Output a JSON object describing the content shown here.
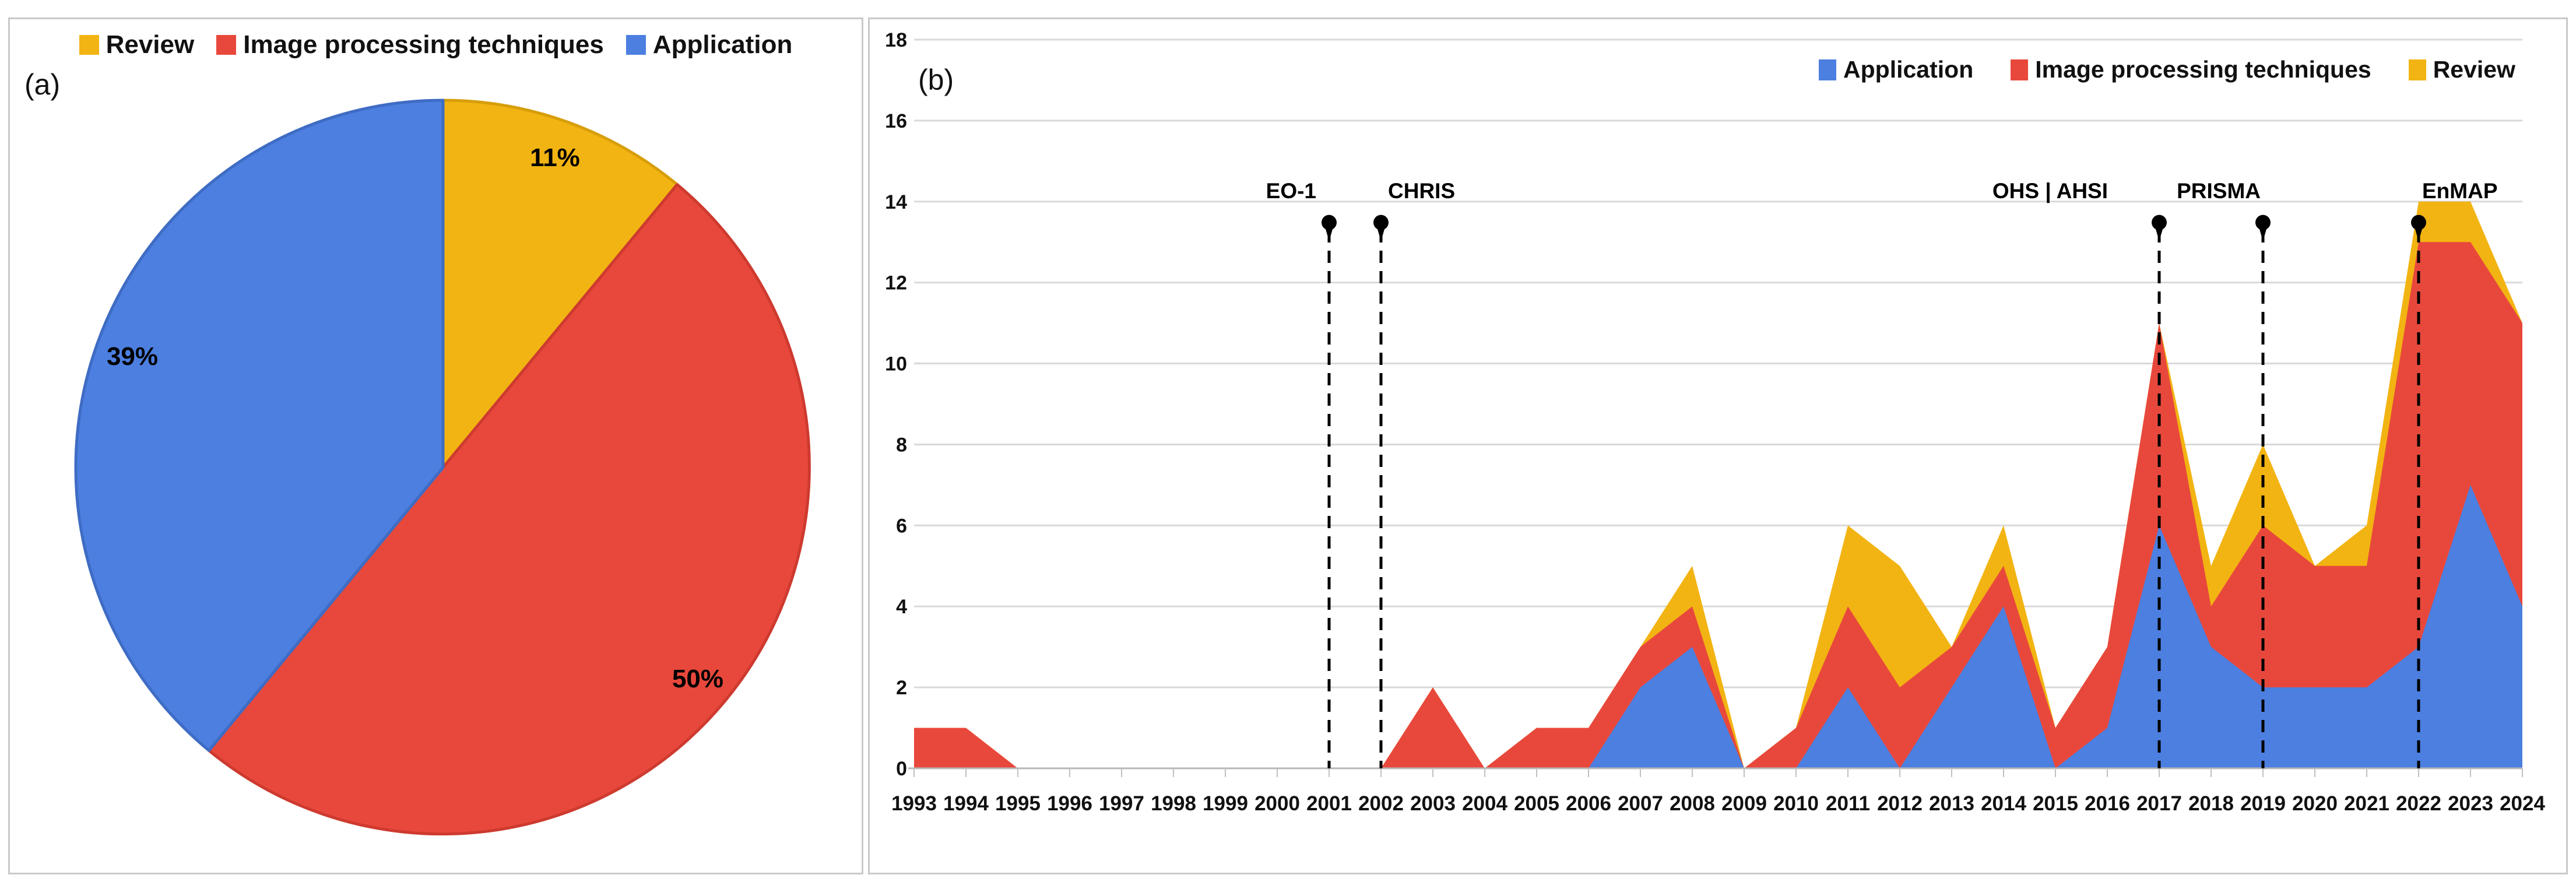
{
  "figure": {
    "panel_a": {
      "tag": "(a)",
      "legend": [
        {
          "label": "Review",
          "color": "#F2B412",
          "icon": "legend-swatch-review"
        },
        {
          "label": "Image processing techniques",
          "color": "#E8483C",
          "icon": "legend-swatch-image-processing"
        },
        {
          "label": "Application",
          "color": "#4C7FE0",
          "icon": "legend-swatch-application"
        }
      ],
      "chart_data": {
        "type": "pie",
        "title": "",
        "start_at": "12-o-clock",
        "direction": "clockwise",
        "slices": [
          {
            "label": "Review",
            "value": 11,
            "display": "11%",
            "color": "#F2B412",
            "edge_color": "#D79E0B"
          },
          {
            "label": "Image processing techniques",
            "value": 50,
            "display": "50%",
            "color": "#E8483C",
            "edge_color": "#CE3A2F"
          },
          {
            "label": "Application",
            "value": 39,
            "display": "39%",
            "color": "#4C7FE0",
            "edge_color": "#3F6CC4"
          }
        ]
      }
    },
    "panel_b": {
      "tag": "(b)",
      "legend": [
        {
          "label": "Application",
          "color": "#4C7FE0",
          "icon": "legend-swatch-application"
        },
        {
          "label": "Image processing techniques",
          "color": "#E8483C",
          "icon": "legend-swatch-image-processing"
        },
        {
          "label": "Review",
          "color": "#F2B412",
          "icon": "legend-swatch-review"
        }
      ],
      "chart_data": {
        "type": "area",
        "stacked": true,
        "grid": true,
        "ylim": [
          0,
          18
        ],
        "ytick_step": 2,
        "yticks": [
          0,
          2,
          4,
          6,
          8,
          10,
          12,
          14,
          16,
          18
        ],
        "categories": [
          "1993",
          "1994",
          "1995",
          "1996",
          "1997",
          "1998",
          "1999",
          "2000",
          "2001",
          "2002",
          "2003",
          "2004",
          "2005",
          "2006",
          "2007",
          "2008",
          "2009",
          "2010",
          "2011",
          "2012",
          "2013",
          "2014",
          "2015",
          "2016",
          "2017",
          "2018",
          "2019",
          "2020",
          "2021",
          "2022",
          "2023",
          "2024"
        ],
        "series": [
          {
            "name": "Application",
            "color": "#4C7FE0",
            "values": [
              0,
              0,
              0,
              0,
              0,
              0,
              0,
              0,
              0,
              0,
              0,
              0,
              0,
              0,
              2,
              3,
              0,
              0,
              2,
              0,
              2,
              4,
              0,
              1,
              6,
              3,
              2,
              2,
              2,
              3,
              7,
              4
            ]
          },
          {
            "name": "Image processing techniques",
            "color": "#E8483C",
            "values": [
              1,
              1,
              0,
              0,
              0,
              0,
              0,
              0,
              0,
              0,
              2,
              0,
              1,
              1,
              1,
              1,
              0,
              1,
              2,
              2,
              1,
              1,
              1,
              2,
              5,
              1,
              4,
              3,
              3,
              10,
              6,
              7
            ]
          },
          {
            "name": "Review",
            "color": "#F2B412",
            "values": [
              0,
              0,
              0,
              0,
              0,
              0,
              0,
              0,
              0,
              0,
              0,
              0,
              0,
              0,
              0,
              1,
              0,
              0,
              2,
              3,
              0,
              1,
              0,
              0,
              0,
              1,
              2,
              0,
              1,
              1,
              1,
              0
            ]
          }
        ],
        "annotations": [
          {
            "label": "EO-1",
            "year": "2001",
            "align": "end",
            "dx": -22,
            "marker": "pin",
            "marker_value": 13.8
          },
          {
            "label": "CHRIS",
            "year": "2002",
            "align": "start",
            "dx": 12,
            "marker": "pin",
            "marker_value": 13.8
          },
          {
            "label": "OHS | AHSI",
            "year": "2017",
            "align": "end",
            "dx": -88,
            "marker": "pin",
            "marker_value": 13.8
          },
          {
            "label": "PRISMA",
            "year": "2019",
            "align": "end",
            "dx": -4,
            "marker": "pin",
            "marker_value": 13.8
          },
          {
            "label": "EnMAP",
            "year": "2022",
            "align": "start",
            "dx": 6,
            "marker": "pin",
            "marker_value": 13.8
          }
        ]
      }
    }
  }
}
